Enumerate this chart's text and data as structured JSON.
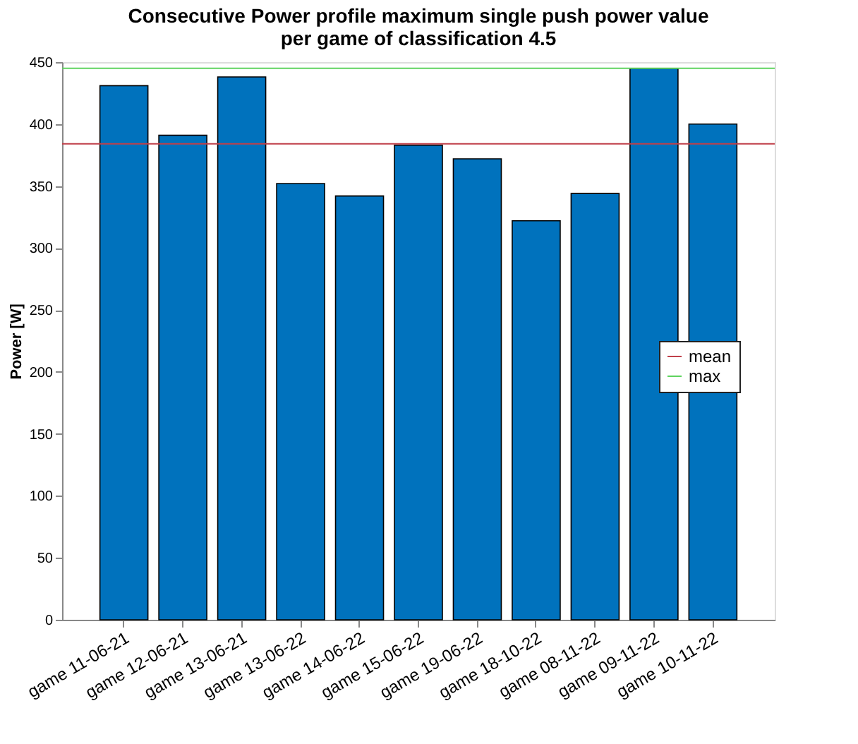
{
  "chart_data": {
    "type": "bar",
    "title": [
      "Consecutive Power profile maximum single push power value",
      "per game of classification 4.5"
    ],
    "ylabel": "Power [W]",
    "categories": [
      "game 11-06-21",
      "game 12-06-21",
      "game 13-06-21",
      "game 13-06-22",
      "game 14-06-22",
      "game 15-06-22",
      "game 19-06-22",
      "game 18-10-22",
      "game 08-11-22",
      "game 09-11-22",
      "game 10-11-22"
    ],
    "values": [
      431,
      391,
      438,
      352,
      342,
      383,
      372,
      322,
      344,
      445,
      400
    ],
    "color": "#0072bd",
    "ylim": [
      0,
      450
    ],
    "yticks": [
      0,
      50,
      100,
      150,
      200,
      250,
      300,
      350,
      400,
      450
    ],
    "ref_lines": [
      {
        "axis": "y",
        "value": 384,
        "label": "mean",
        "color": "#c0404a"
      },
      {
        "axis": "y",
        "value": 445,
        "label": "max",
        "color": "#5fd35f"
      }
    ],
    "grid": false,
    "legend": "right"
  }
}
